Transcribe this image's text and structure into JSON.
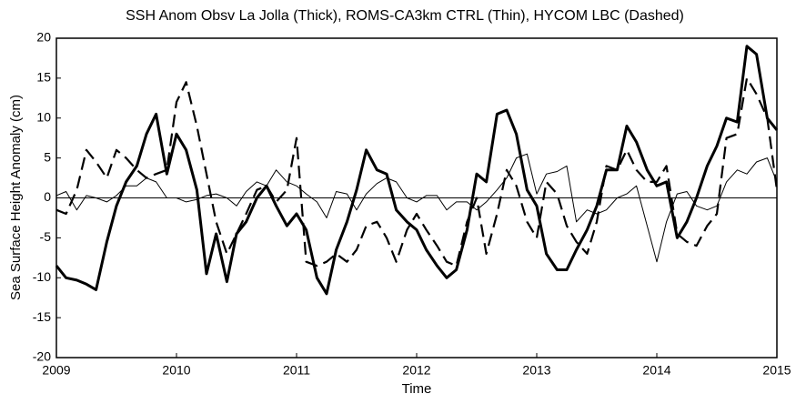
{
  "chart_data": {
    "type": "line",
    "title": "SSH Anom Obsv La Jolla (Thick), ROMS-CA3km CTRL (Thin), HYCOM LBC (Dashed)",
    "xlabel": "Time",
    "ylabel": "Sea Surface Height Anomaly (cm)",
    "x": [
      2009.0,
      2009.08,
      2009.17,
      2009.25,
      2009.33,
      2009.42,
      2009.5,
      2009.58,
      2009.67,
      2009.75,
      2009.83,
      2009.92,
      2010.0,
      2010.08,
      2010.17,
      2010.25,
      2010.33,
      2010.42,
      2010.5,
      2010.58,
      2010.67,
      2010.75,
      2010.83,
      2010.92,
      2011.0,
      2011.08,
      2011.17,
      2011.25,
      2011.33,
      2011.42,
      2011.5,
      2011.58,
      2011.67,
      2011.75,
      2011.83,
      2011.92,
      2012.0,
      2012.08,
      2012.17,
      2012.25,
      2012.33,
      2012.42,
      2012.5,
      2012.58,
      2012.67,
      2012.75,
      2012.83,
      2012.92,
      2013.0,
      2013.08,
      2013.17,
      2013.25,
      2013.33,
      2013.42,
      2013.5,
      2013.58,
      2013.67,
      2013.75,
      2013.83,
      2013.92,
      2014.0,
      2014.08,
      2014.17,
      2014.25,
      2014.33,
      2014.42,
      2014.5,
      2014.58,
      2014.67,
      2014.75,
      2014.83,
      2014.92,
      2015.0
    ],
    "series": [
      {
        "color": "#000000",
        "line_width": 3,
        "dash": false,
        "values": [
          -8.5,
          -10,
          -10.3,
          -10.8,
          -11.5,
          -5.5,
          -1,
          2,
          4,
          8,
          10.5,
          3,
          8,
          6,
          1,
          -9.5,
          -4.5,
          -10.5,
          -4.5,
          -3,
          0,
          1.5,
          -1,
          -3.5,
          -2,
          -4,
          -10,
          -12,
          -6.5,
          -3,
          1,
          6,
          3.5,
          3,
          -1.5,
          -3,
          -4,
          -6.5,
          -8.5,
          -10,
          -9,
          -4,
          3,
          2,
          10.5,
          11,
          8,
          1,
          -1,
          -7,
          -9,
          -9,
          -6.5,
          -4,
          -1,
          3.5,
          3.5,
          9,
          7,
          3.5,
          1.5,
          2,
          -5,
          -3,
          0,
          4,
          6.5,
          10,
          9.5,
          19,
          18,
          10,
          8.5
        ]
      },
      {
        "color": "#000000",
        "line_width": 1,
        "dash": false,
        "values": [
          0.3,
          0.8,
          -1.5,
          0.3,
          0,
          -0.5,
          0.3,
          1.5,
          1.5,
          2.5,
          2,
          0,
          0,
          -0.5,
          -0.2,
          0.3,
          0.5,
          0,
          -1,
          0.8,
          2,
          1.5,
          3.5,
          2,
          1.5,
          0.5,
          -0.5,
          -2.5,
          0.8,
          0.5,
          -1.5,
          0.5,
          1.8,
          2.5,
          2,
          0,
          -0.5,
          0.3,
          0.3,
          -1.5,
          -0.5,
          -0.5,
          -1.5,
          -0.5,
          1,
          2.5,
          5,
          5.5,
          0.5,
          3,
          3.3,
          4,
          -3,
          -1.5,
          -2,
          -1.5,
          0,
          0.5,
          1.5,
          -3.5,
          -8,
          -3,
          0.5,
          0.8,
          -1,
          -1.5,
          -1,
          2,
          3.5,
          3,
          4.5,
          5,
          2
        ]
      },
      {
        "color": "#000000",
        "line_width": 2.2,
        "dash": true,
        "values": [
          -1.5,
          -2,
          1,
          6,
          4.5,
          2.5,
          6,
          5,
          3.5,
          2.5,
          3,
          3.5,
          12,
          14.5,
          9,
          3,
          -3,
          -7,
          -4.5,
          -2,
          1,
          1.5,
          -0.5,
          1,
          7.5,
          -8,
          -8.5,
          -8,
          -7,
          -8,
          -6.5,
          -3.5,
          -3,
          -5,
          -8,
          -4,
          -2,
          -4,
          -6,
          -8,
          -8.5,
          -3,
          0,
          -7,
          -2,
          3.5,
          1.5,
          -3,
          -5,
          2,
          0.5,
          -3.5,
          -5.5,
          -7,
          -3,
          4,
          3.5,
          6,
          3.5,
          2,
          2,
          4,
          -4.5,
          -5.5,
          -6,
          -3.5,
          -2,
          7.5,
          8,
          15,
          13,
          10,
          1
        ]
      }
    ],
    "hlines": [
      0
    ],
    "xlim": [
      2009,
      2015
    ],
    "xticks": [
      2009,
      2010,
      2011,
      2012,
      2013,
      2014,
      2015
    ],
    "ylim": [
      -20,
      20
    ],
    "yticks": [
      -20,
      -15,
      -10,
      -5,
      0,
      5,
      10,
      15,
      20
    ]
  }
}
